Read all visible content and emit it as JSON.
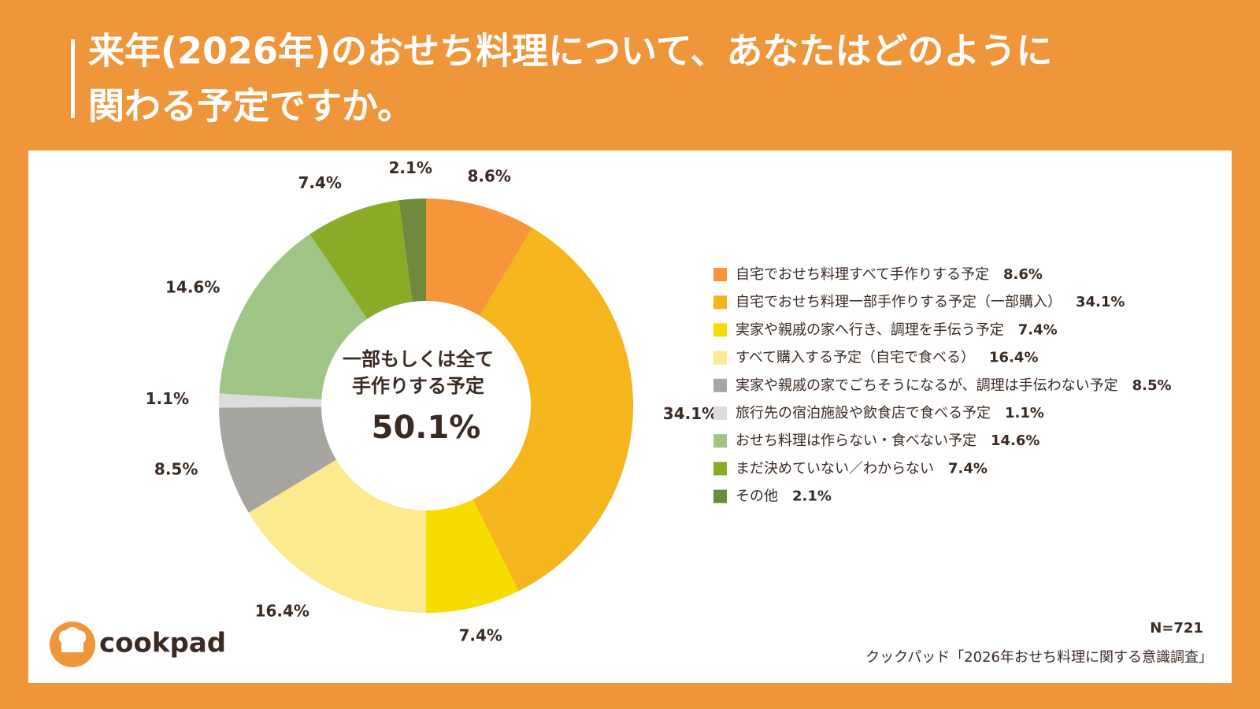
{
  "title_lines": [
    "来年(2026年)のおせち料理について、あなたはどのように",
    "関わる予定ですか。"
  ],
  "chart_data": {
    "type": "donut",
    "categories": [
      "自宅でおせち料理すべて手作りする予定",
      "自宅でおせち料理一部手作りする予定（一部購入）",
      "実家や親戚の家へ行き、調理を手伝う予定",
      "すべて購入する予定（自宅で食べる）",
      "実家や親戚の家でごちそうになるが、調理は手伝わない予定",
      "旅行先の宿泊施設や飲食店で食べる予定",
      "おせち料理は作らない・食べない予定",
      "まだ決めていない／わからない",
      "その他"
    ],
    "values": [
      8.6,
      34.1,
      7.4,
      16.4,
      8.5,
      1.1,
      14.6,
      7.4,
      2.1
    ],
    "value_labels": [
      "8.6%",
      "34.1%",
      "7.4%",
      "16.4%",
      "8.5%",
      "1.1%",
      "14.6%",
      "7.4%",
      "2.1%"
    ],
    "colors": [
      "#f7953a",
      "#f5b51d",
      "#f7dc00",
      "#fde98e",
      "#a6a59f",
      "#dcdcdc",
      "#9ec585",
      "#8aab27",
      "#6e8a3c"
    ],
    "center_text": [
      "一部もしくは全て",
      "手作りする予定"
    ],
    "center_value": "50.1%"
  },
  "note": "N=721",
  "source": "クックパッド「2026年おせち料理に関する意識調査」",
  "logo": "cookpad"
}
